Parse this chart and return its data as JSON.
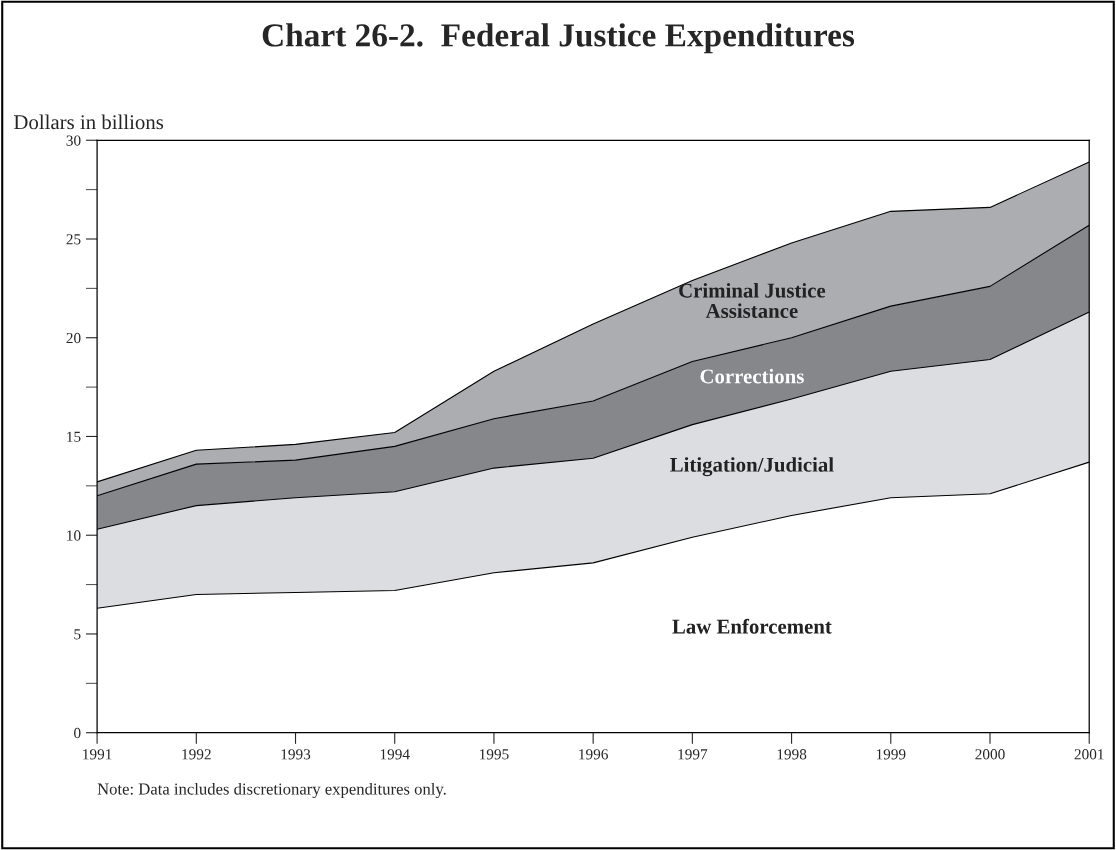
{
  "chart_data": {
    "type": "area",
    "stacked": true,
    "title": "Chart 26-2.  Federal Justice Expenditures",
    "ylabel": "Dollars in billions",
    "x": [
      1991,
      1992,
      1993,
      1994,
      1995,
      1996,
      1997,
      1998,
      1999,
      2000,
      2001
    ],
    "xlim": [
      1991,
      2001
    ],
    "xticks": [
      1991,
      1992,
      1993,
      1994,
      1995,
      1996,
      1997,
      1998,
      1999,
      2000,
      2001
    ],
    "ylim": [
      0,
      30
    ],
    "yticks": [
      0,
      5,
      10,
      15,
      20,
      25,
      30
    ],
    "series": [
      {
        "name": "Law Enforcement",
        "color": "#ffffff",
        "values": [
          6.3,
          7.0,
          7.1,
          7.2,
          8.1,
          8.6,
          9.9,
          11.0,
          11.9,
          12.1,
          13.7
        ]
      },
      {
        "name": "Litigation/Judicial",
        "color": "#dcdde0",
        "values": [
          4.0,
          4.5,
          4.8,
          5.0,
          5.3,
          5.3,
          5.7,
          5.9,
          6.4,
          6.8,
          7.6
        ]
      },
      {
        "name": "Corrections",
        "color": "#86878b",
        "values": [
          1.7,
          2.1,
          1.9,
          2.3,
          2.5,
          2.9,
          3.2,
          3.1,
          3.3,
          3.7,
          4.4
        ]
      },
      {
        "name": "Criminal Justice Assistance",
        "color": "#acadb0",
        "values": [
          0.7,
          0.7,
          0.8,
          0.7,
          2.4,
          3.9,
          4.1,
          4.8,
          4.8,
          4.0,
          3.2
        ]
      }
    ],
    "annotations": [
      "Note: Data includes discretionary expenditures only."
    ]
  }
}
